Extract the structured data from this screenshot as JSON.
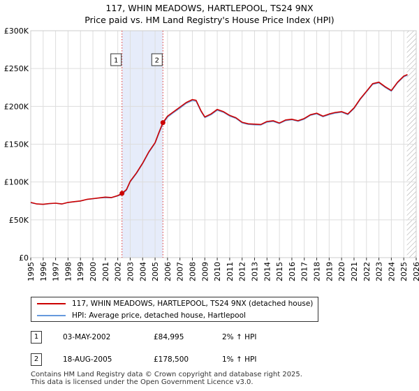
{
  "chart_data": {
    "type": "line",
    "title": "117, WHIN MEADOWS, HARTLEPOOL, TS24 9NX",
    "subtitle": "Price paid vs. HM Land Registry's House Price Index (HPI)",
    "xlabel": "",
    "ylabel": "",
    "xlim": [
      1995,
      2026
    ],
    "ylim": [
      0,
      300000
    ],
    "y_ticks": [
      {
        "value": 0,
        "label": "£0"
      },
      {
        "value": 50000,
        "label": "£50K"
      },
      {
        "value": 100000,
        "label": "£100K"
      },
      {
        "value": 150000,
        "label": "£150K"
      },
      {
        "value": 200000,
        "label": "£200K"
      },
      {
        "value": 250000,
        "label": "£250K"
      },
      {
        "value": 300000,
        "label": "£300K"
      }
    ],
    "x_ticks": [
      "1995",
      "1996",
      "1997",
      "1998",
      "1999",
      "2000",
      "2001",
      "2002",
      "2003",
      "2004",
      "2005",
      "2006",
      "2007",
      "2008",
      "2009",
      "2010",
      "2011",
      "2012",
      "2013",
      "2014",
      "2015",
      "2016",
      "2017",
      "2018",
      "2019",
      "2020",
      "2021",
      "2022",
      "2023",
      "2024",
      "2025",
      "2026"
    ],
    "grid": true,
    "colors": {
      "property": "#cc0000",
      "hpi": "#6699dd",
      "shade": "#e6ecfa",
      "marker_line": "#dd3333",
      "hatch": "#999999"
    },
    "shaded_region": [
      2002.34,
      2005.63
    ],
    "future_hatch_from": 2025.25,
    "series": [
      {
        "name": "117, WHIN MEADOWS, HARTLEPOOL, TS24 9NX (detached house)",
        "key": "property",
        "x": [
          1995.0,
          1995.5,
          1996.0,
          1996.5,
          1997.0,
          1997.5,
          1998.0,
          1998.5,
          1999.0,
          1999.5,
          2000.0,
          2000.5,
          2001.0,
          2001.5,
          2002.0,
          2002.34,
          2002.7,
          2003.0,
          2003.5,
          2004.0,
          2004.5,
          2005.0,
          2005.3,
          2005.63,
          2006.0,
          2006.5,
          2007.0,
          2007.5,
          2008.0,
          2008.3,
          2008.7,
          2009.0,
          2009.5,
          2010.0,
          2010.5,
          2011.0,
          2011.5,
          2012.0,
          2012.5,
          2013.0,
          2013.5,
          2014.0,
          2014.5,
          2015.0,
          2015.5,
          2016.0,
          2016.5,
          2017.0,
          2017.5,
          2018.0,
          2018.5,
          2019.0,
          2019.5,
          2020.0,
          2020.5,
          2021.0,
          2021.5,
          2022.0,
          2022.5,
          2023.0,
          2023.5,
          2024.0,
          2024.5,
          2025.0,
          2025.3
        ],
        "values": [
          73000,
          71000,
          70500,
          71500,
          72000,
          71000,
          73000,
          74000,
          75000,
          77000,
          78000,
          79000,
          80000,
          79500,
          82000,
          84995,
          90000,
          101000,
          112000,
          125000,
          140000,
          152000,
          165000,
          178500,
          187000,
          193000,
          199000,
          205000,
          209000,
          208000,
          194000,
          186000,
          190000,
          196000,
          193000,
          188000,
          185000,
          179000,
          177000,
          176500,
          176000,
          180000,
          181000,
          178000,
          182000,
          183000,
          181000,
          184000,
          189000,
          191000,
          187000,
          190000,
          192000,
          193000,
          190000,
          198000,
          210000,
          220000,
          230000,
          232000,
          226000,
          221000,
          232000,
          240000,
          242000
        ]
      },
      {
        "name": "HPI: Average price, detached house, Hartlepool",
        "key": "hpi",
        "x": [
          1995.0,
          1995.5,
          1996.0,
          1996.5,
          1997.0,
          1997.5,
          1998.0,
          1998.5,
          1999.0,
          1999.5,
          2000.0,
          2000.5,
          2001.0,
          2001.5,
          2002.0,
          2002.34,
          2002.7,
          2003.0,
          2003.5,
          2004.0,
          2004.5,
          2005.0,
          2005.3,
          2005.63,
          2006.0,
          2006.5,
          2007.0,
          2007.5,
          2008.0,
          2008.3,
          2008.7,
          2009.0,
          2009.5,
          2010.0,
          2010.5,
          2011.0,
          2011.5,
          2012.0,
          2012.5,
          2013.0,
          2013.5,
          2014.0,
          2014.5,
          2015.0,
          2015.5,
          2016.0,
          2016.5,
          2017.0,
          2017.5,
          2018.0,
          2018.5,
          2019.0,
          2019.5,
          2020.0,
          2020.5,
          2021.0,
          2021.5,
          2022.0,
          2022.5,
          2023.0,
          2023.5,
          2024.0,
          2024.5,
          2025.0,
          2025.3
        ],
        "values": [
          72500,
          70800,
          70200,
          71200,
          71800,
          70700,
          72700,
          73800,
          74600,
          76800,
          77600,
          78700,
          79200,
          79100,
          81500,
          83300,
          89000,
          100000,
          111000,
          124000,
          139000,
          151000,
          163500,
          176700,
          185500,
          191800,
          197500,
          203800,
          207500,
          206500,
          192800,
          185000,
          188800,
          194800,
          192000,
          187000,
          184000,
          178000,
          176000,
          175500,
          175200,
          179000,
          180000,
          177200,
          181000,
          182200,
          180200,
          183000,
          188000,
          190000,
          186200,
          189000,
          191000,
          192200,
          189000,
          197000,
          209000,
          219000,
          229000,
          231000,
          225000,
          220000,
          231000,
          239000,
          241000
        ]
      }
    ],
    "sales": [
      {
        "id": "1",
        "x": 2002.34,
        "value": 84995,
        "date": "03-MAY-2002",
        "price": "£84,995",
        "hpi": "2% ↑ HPI"
      },
      {
        "id": "2",
        "x": 2005.63,
        "value": 178500,
        "date": "18-AUG-2005",
        "price": "£178,500",
        "hpi": "1% ↑ HPI"
      }
    ]
  },
  "legend": {
    "property_label": "117, WHIN MEADOWS, HARTLEPOOL, TS24 9NX (detached house)",
    "hpi_label": "HPI: Average price, detached house, Hartlepool"
  },
  "footer": {
    "line1": "Contains HM Land Registry data © Crown copyright and database right 2025.",
    "line2": "This data is licensed under the Open Government Licence v3.0."
  }
}
